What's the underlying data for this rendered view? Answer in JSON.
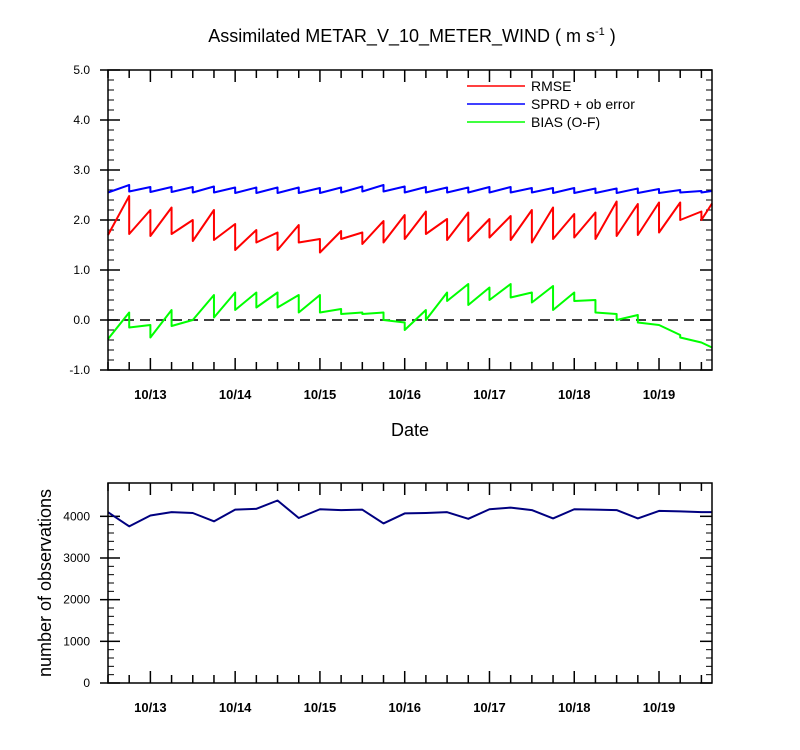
{
  "chart_data": [
    {
      "type": "line",
      "title_main": "Assimilated METAR_V_10_METER_WIND ( m s",
      "title_sup": "-1",
      "title_end": " )",
      "xlabel": "Date",
      "ylabel": "",
      "ylim": [
        -1.0,
        5.0
      ],
      "yticks": [
        -1.0,
        0.0,
        1.0,
        2.0,
        3.0,
        4.0,
        5.0
      ],
      "ytick_labels": [
        "-1.0",
        "0.0",
        "1.0",
        "2.0",
        "3.0",
        "4.0",
        "5.0"
      ],
      "xlim": [
        12.5,
        19.625
      ],
      "x_ticks": [
        13,
        14,
        15,
        16,
        17,
        18,
        19
      ],
      "x_tick_labels": [
        "10/13",
        "10/14",
        "10/15",
        "10/16",
        "10/17",
        "10/18",
        "10/19"
      ],
      "zero_line": true,
      "legend_position": "top-right",
      "series": [
        {
          "name": "RMSE",
          "color": "#ff0000",
          "x": [
            12.5,
            12.75,
            12.75,
            13.0,
            13.0,
            13.25,
            13.25,
            13.5,
            13.5,
            13.75,
            13.75,
            14.0,
            14.0,
            14.25,
            14.25,
            14.5,
            14.5,
            14.75,
            14.75,
            15.0,
            15.0,
            15.25,
            15.25,
            15.5,
            15.5,
            15.75,
            15.75,
            16.0,
            16.0,
            16.25,
            16.25,
            16.5,
            16.5,
            16.75,
            16.75,
            17.0,
            17.0,
            17.25,
            17.25,
            17.5,
            17.5,
            17.75,
            17.75,
            18.0,
            18.0,
            18.25,
            18.25,
            18.5,
            18.5,
            18.75,
            18.75,
            19.0,
            19.0,
            19.25,
            19.25,
            19.5,
            19.5,
            19.625
          ],
          "y": [
            1.7,
            2.48,
            1.72,
            2.2,
            1.68,
            2.25,
            1.72,
            2.0,
            1.58,
            2.2,
            1.6,
            1.92,
            1.4,
            1.8,
            1.55,
            1.75,
            1.4,
            1.9,
            1.55,
            1.62,
            1.35,
            1.78,
            1.62,
            1.75,
            1.52,
            1.98,
            1.55,
            2.1,
            1.62,
            2.17,
            1.72,
            2.02,
            1.6,
            2.15,
            1.58,
            2.02,
            1.65,
            2.08,
            1.6,
            2.2,
            1.55,
            2.25,
            1.62,
            2.12,
            1.65,
            2.15,
            1.62,
            2.37,
            1.68,
            2.32,
            1.7,
            2.35,
            1.75,
            2.35,
            2.0,
            2.17,
            2.0,
            2.33
          ]
        },
        {
          "name": "SPRD + ob error",
          "color": "#0000ff",
          "x": [
            12.5,
            12.75,
            12.75,
            13.0,
            13.0,
            13.25,
            13.25,
            13.5,
            13.5,
            13.75,
            13.75,
            14.0,
            14.0,
            14.25,
            14.25,
            14.5,
            14.5,
            14.75,
            14.75,
            15.0,
            15.0,
            15.25,
            15.25,
            15.5,
            15.5,
            15.75,
            15.75,
            16.0,
            16.0,
            16.25,
            16.25,
            16.5,
            16.5,
            16.75,
            16.75,
            17.0,
            17.0,
            17.25,
            17.25,
            17.5,
            17.5,
            17.75,
            17.75,
            18.0,
            18.0,
            18.25,
            18.25,
            18.5,
            18.5,
            18.75,
            18.75,
            19.0,
            19.0,
            19.25,
            19.25,
            19.5,
            19.5,
            19.625
          ],
          "y": [
            2.55,
            2.7,
            2.57,
            2.66,
            2.56,
            2.66,
            2.56,
            2.66,
            2.55,
            2.67,
            2.55,
            2.65,
            2.54,
            2.65,
            2.54,
            2.65,
            2.54,
            2.65,
            2.54,
            2.64,
            2.54,
            2.65,
            2.55,
            2.67,
            2.57,
            2.7,
            2.57,
            2.67,
            2.55,
            2.66,
            2.55,
            2.65,
            2.55,
            2.65,
            2.55,
            2.66,
            2.55,
            2.66,
            2.55,
            2.64,
            2.55,
            2.64,
            2.54,
            2.64,
            2.54,
            2.63,
            2.54,
            2.63,
            2.54,
            2.63,
            2.54,
            2.62,
            2.54,
            2.6,
            2.55,
            2.58,
            2.55,
            2.58
          ]
        },
        {
          "name": "BIAS (O-F)",
          "color": "#00ff00",
          "x": [
            12.5,
            12.75,
            12.75,
            13.0,
            13.0,
            13.25,
            13.25,
            13.5,
            13.5,
            13.75,
            13.75,
            14.0,
            14.0,
            14.25,
            14.25,
            14.5,
            14.5,
            14.75,
            14.75,
            15.0,
            15.0,
            15.25,
            15.25,
            15.5,
            15.5,
            15.75,
            15.75,
            16.0,
            16.0,
            16.25,
            16.25,
            16.5,
            16.5,
            16.75,
            16.75,
            17.0,
            17.0,
            17.25,
            17.25,
            17.5,
            17.5,
            17.75,
            17.75,
            18.0,
            18.0,
            18.25,
            18.25,
            18.5,
            18.5,
            18.75,
            18.75,
            19.0,
            19.0,
            19.25,
            19.25,
            19.5,
            19.5,
            19.625
          ],
          "y": [
            -0.38,
            0.15,
            -0.15,
            -0.1,
            -0.35,
            0.2,
            -0.12,
            0.0,
            0.0,
            0.5,
            0.05,
            0.55,
            0.2,
            0.55,
            0.25,
            0.55,
            0.25,
            0.5,
            0.15,
            0.5,
            0.15,
            0.22,
            0.12,
            0.15,
            0.12,
            0.15,
            0.0,
            -0.05,
            -0.2,
            0.2,
            0.0,
            0.55,
            0.38,
            0.72,
            0.3,
            0.65,
            0.4,
            0.72,
            0.45,
            0.55,
            0.35,
            0.68,
            0.2,
            0.55,
            0.38,
            0.4,
            0.15,
            0.12,
            0.0,
            0.1,
            -0.05,
            -0.1,
            -0.1,
            -0.3,
            -0.35,
            -0.45,
            -0.45,
            -0.55
          ]
        }
      ]
    },
    {
      "type": "line",
      "xlabel": "",
      "ylabel": "number of observations",
      "ylim": [
        0,
        4800
      ],
      "yticks": [
        0,
        1000,
        2000,
        3000,
        4000
      ],
      "ytick_labels": [
        "0",
        "1000",
        "2000",
        "3000",
        "4000"
      ],
      "xlim": [
        12.5,
        19.625
      ],
      "x_ticks": [
        13,
        14,
        15,
        16,
        17,
        18,
        19
      ],
      "x_tick_labels": [
        "10/13",
        "10/14",
        "10/15",
        "10/16",
        "10/17",
        "10/18",
        "10/19"
      ],
      "series": [
        {
          "name": "",
          "color": "#000080",
          "x": [
            12.5,
            12.75,
            13.0,
            13.25,
            13.5,
            13.75,
            14.0,
            14.25,
            14.5,
            14.75,
            15.0,
            15.25,
            15.5,
            15.75,
            16.0,
            16.25,
            16.5,
            16.75,
            17.0,
            17.25,
            17.5,
            17.75,
            18.0,
            18.25,
            18.5,
            18.75,
            19.0,
            19.25,
            19.5,
            19.625
          ],
          "y": [
            4100,
            3760,
            4020,
            4100,
            4080,
            3880,
            4160,
            4180,
            4380,
            3960,
            4170,
            4150,
            4160,
            3830,
            4070,
            4080,
            4100,
            3940,
            4170,
            4210,
            4150,
            3950,
            4170,
            4160,
            4150,
            3950,
            4130,
            4120,
            4100,
            4100
          ]
        }
      ]
    }
  ]
}
